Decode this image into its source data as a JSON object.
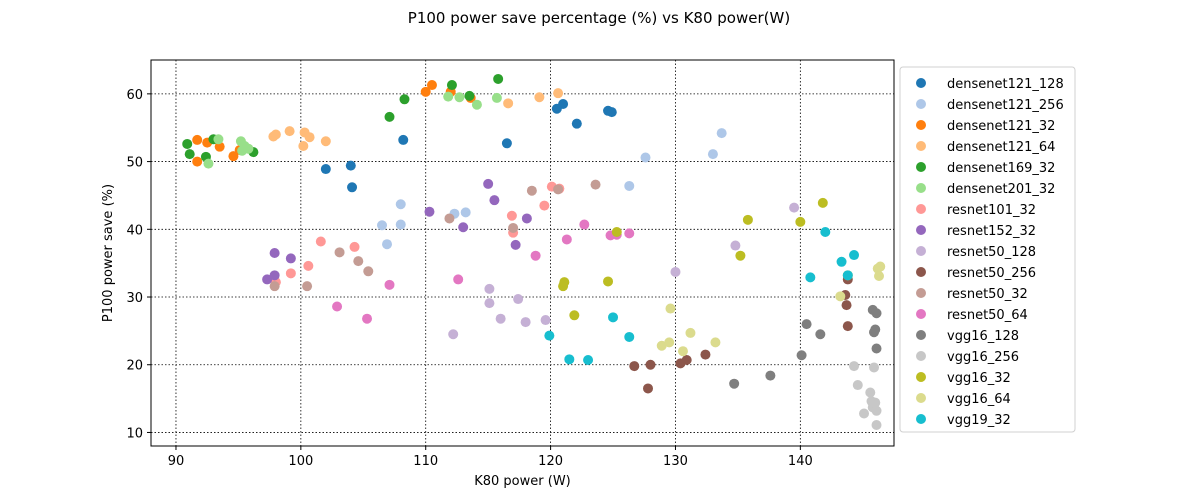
{
  "chart_data": {
    "type": "scatter",
    "title": "P100 power save percentage (%) vs K80 power(W)",
    "xlabel": "K80 power (W)",
    "ylabel": "P100 power save (%)",
    "xlim": [
      88,
      147.5
    ],
    "ylim": [
      8,
      65
    ],
    "xticks": [
      90,
      100,
      110,
      120,
      130,
      140
    ],
    "yticks": [
      10,
      20,
      30,
      40,
      50,
      60
    ],
    "grid": true,
    "legend_position": "right",
    "series": [
      {
        "name": "densenet121_128",
        "color": "#1f77b4",
        "points": [
          [
            102,
            48.9
          ],
          [
            104,
            49.4
          ],
          [
            104.1,
            46.2
          ],
          [
            108.2,
            53.2
          ],
          [
            116.5,
            52.7
          ],
          [
            120.5,
            57.8
          ],
          [
            121,
            58.5
          ],
          [
            122.1,
            55.6
          ],
          [
            124.6,
            57.5
          ],
          [
            124.9,
            57.3
          ]
        ]
      },
      {
        "name": "densenet121_256",
        "color": "#aec7e8",
        "points": [
          [
            106.5,
            40.6
          ],
          [
            106.9,
            37.8
          ],
          [
            108,
            43.7
          ],
          [
            108,
            40.7
          ],
          [
            112.3,
            42.3
          ],
          [
            113.2,
            42.5
          ],
          [
            126.3,
            46.4
          ],
          [
            127.6,
            50.6
          ],
          [
            133,
            51.1
          ],
          [
            133.7,
            54.2
          ]
        ]
      },
      {
        "name": "densenet121_32",
        "color": "#ff7f0e",
        "points": [
          [
            91.7,
            53.2
          ],
          [
            91.7,
            50
          ],
          [
            92.5,
            52.8
          ],
          [
            93.5,
            52.2
          ],
          [
            94.6,
            50.8
          ],
          [
            95.1,
            51.7
          ],
          [
            110,
            60.3
          ],
          [
            110.5,
            61.3
          ],
          [
            112,
            60.3
          ],
          [
            113.6,
            59.4
          ]
        ]
      },
      {
        "name": "densenet121_64",
        "color": "#ffbb78",
        "points": [
          [
            97.8,
            53.7
          ],
          [
            98,
            54
          ],
          [
            99.1,
            54.5
          ],
          [
            100.2,
            52.3
          ],
          [
            100.3,
            54.3
          ],
          [
            100.7,
            53.6
          ],
          [
            102,
            53
          ],
          [
            116.6,
            58.6
          ],
          [
            119.1,
            59.5
          ],
          [
            120.6,
            60.1
          ]
        ]
      },
      {
        "name": "densenet169_32",
        "color": "#2ca02c",
        "points": [
          [
            90.9,
            52.6
          ],
          [
            91.1,
            51.1
          ],
          [
            92.4,
            50.7
          ],
          [
            93,
            53.3
          ],
          [
            96.2,
            51.4
          ],
          [
            107.1,
            56.6
          ],
          [
            108.3,
            59.2
          ],
          [
            112.1,
            61.3
          ],
          [
            113.5,
            59.7
          ],
          [
            115.8,
            62.2
          ]
        ]
      },
      {
        "name": "densenet201_32",
        "color": "#98df8a",
        "points": [
          [
            92.6,
            49.7
          ],
          [
            93.4,
            53.3
          ],
          [
            95.2,
            53
          ],
          [
            95.3,
            51.6
          ],
          [
            95.5,
            52.3
          ],
          [
            95.8,
            51.9
          ],
          [
            111.8,
            59.6
          ],
          [
            112.7,
            59.5
          ],
          [
            114.1,
            58.4
          ],
          [
            115.7,
            59.4
          ]
        ]
      },
      {
        "name": "resnet101_32",
        "color": "#ff9896",
        "points": [
          [
            98,
            32.2
          ],
          [
            99.2,
            33.5
          ],
          [
            100.6,
            34.6
          ],
          [
            101.6,
            38.2
          ],
          [
            104.3,
            37.4
          ],
          [
            116.9,
            42
          ],
          [
            117,
            39.5
          ],
          [
            119.5,
            43.5
          ],
          [
            120.1,
            46.3
          ],
          [
            120.7,
            46
          ]
        ]
      },
      {
        "name": "resnet152_32",
        "color": "#9467bd",
        "points": [
          [
            97.3,
            32.6
          ],
          [
            97.9,
            36.5
          ],
          [
            97.9,
            33.2
          ],
          [
            99.2,
            35.7
          ],
          [
            110.3,
            42.6
          ],
          [
            113,
            40.3
          ],
          [
            115,
            46.7
          ],
          [
            115.5,
            44.3
          ],
          [
            117.2,
            37.7
          ],
          [
            118.1,
            41.6
          ]
        ]
      },
      {
        "name": "resnet50_128",
        "color": "#c5b0d5",
        "points": [
          [
            112.2,
            24.5
          ],
          [
            115.1,
            31.2
          ],
          [
            115.1,
            29.1
          ],
          [
            116,
            26.8
          ],
          [
            117.4,
            29.7
          ],
          [
            118,
            26.3
          ],
          [
            119.6,
            26.6
          ],
          [
            130,
            33.7
          ],
          [
            134.8,
            37.6
          ],
          [
            139.5,
            43.2
          ]
        ]
      },
      {
        "name": "resnet50_256",
        "color": "#8c564b",
        "points": [
          [
            126.7,
            19.8
          ],
          [
            127.8,
            16.5
          ],
          [
            128,
            20
          ],
          [
            130.4,
            20.2
          ],
          [
            130.9,
            20.7
          ],
          [
            132.4,
            21.5
          ],
          [
            143.6,
            30.3
          ],
          [
            143.7,
            28.8
          ],
          [
            143.8,
            25.7
          ],
          [
            143.8,
            32.6
          ]
        ]
      },
      {
        "name": "resnet50_32",
        "color": "#c49c94",
        "points": [
          [
            97.9,
            31.6
          ],
          [
            100.5,
            31.6
          ],
          [
            103.1,
            36.6
          ],
          [
            104.6,
            35.3
          ],
          [
            105.4,
            33.8
          ],
          [
            111.9,
            41.6
          ],
          [
            117,
            40.2
          ],
          [
            118.5,
            45.7
          ],
          [
            120.6,
            45.9
          ],
          [
            123.6,
            46.6
          ]
        ]
      },
      {
        "name": "resnet50_64",
        "color": "#e377c2",
        "points": [
          [
            102.9,
            28.6
          ],
          [
            105.3,
            26.8
          ],
          [
            107.1,
            31.8
          ],
          [
            112.6,
            32.6
          ],
          [
            118.8,
            36.1
          ],
          [
            121.3,
            38.5
          ],
          [
            122.7,
            40.7
          ],
          [
            124.8,
            39.1
          ],
          [
            125.3,
            39.2
          ],
          [
            126.3,
            39.4
          ]
        ]
      },
      {
        "name": "vgg16_128",
        "color": "#7f7f7f",
        "points": [
          [
            134.7,
            17.2
          ],
          [
            137.6,
            18.4
          ],
          [
            140.1,
            21.4
          ],
          [
            140.5,
            26
          ],
          [
            141.6,
            24.5
          ],
          [
            145.8,
            28.1
          ],
          [
            145.9,
            24.8
          ],
          [
            146,
            25.2
          ],
          [
            146.1,
            22.4
          ],
          [
            146.1,
            27.6
          ]
        ]
      },
      {
        "name": "vgg16_256",
        "color": "#c7c7c7",
        "points": [
          [
            144.3,
            19.8
          ],
          [
            144.6,
            17
          ],
          [
            145.1,
            12.8
          ],
          [
            145.6,
            15.9
          ],
          [
            145.7,
            14.6
          ],
          [
            145.8,
            13.7
          ],
          [
            145.9,
            19.6
          ],
          [
            146,
            14.4
          ],
          [
            146.1,
            13.2
          ],
          [
            146.1,
            11.1
          ]
        ]
      },
      {
        "name": "vgg16_32",
        "color": "#bcbd22",
        "points": [
          [
            121,
            31.6
          ],
          [
            121.1,
            32.2
          ],
          [
            121.9,
            27.3
          ],
          [
            124.6,
            32.3
          ],
          [
            125.3,
            39.6
          ],
          [
            135.2,
            36.1
          ],
          [
            135.8,
            41.4
          ],
          [
            140,
            41.1
          ],
          [
            141.8,
            43.9
          ],
          [
            143.8,
            33.2
          ]
        ]
      },
      {
        "name": "vgg16_64",
        "color": "#dbdb8d",
        "points": [
          [
            128.9,
            22.8
          ],
          [
            129.5,
            23.3
          ],
          [
            129.6,
            28.3
          ],
          [
            130.6,
            22
          ],
          [
            131.2,
            24.7
          ],
          [
            133.2,
            23.3
          ],
          [
            143.2,
            30.1
          ],
          [
            146.2,
            34.2
          ],
          [
            146.3,
            33.1
          ],
          [
            146.4,
            34.5
          ]
        ]
      },
      {
        "name": "vgg19_32",
        "color": "#17becf",
        "points": [
          [
            119.9,
            24.3
          ],
          [
            121.5,
            20.8
          ],
          [
            123,
            20.7
          ],
          [
            125,
            27
          ],
          [
            126.3,
            24.1
          ],
          [
            140.8,
            32.9
          ],
          [
            142,
            39.6
          ],
          [
            143.3,
            35.2
          ],
          [
            143.8,
            33.2
          ],
          [
            144.3,
            36.2
          ]
        ]
      }
    ]
  }
}
